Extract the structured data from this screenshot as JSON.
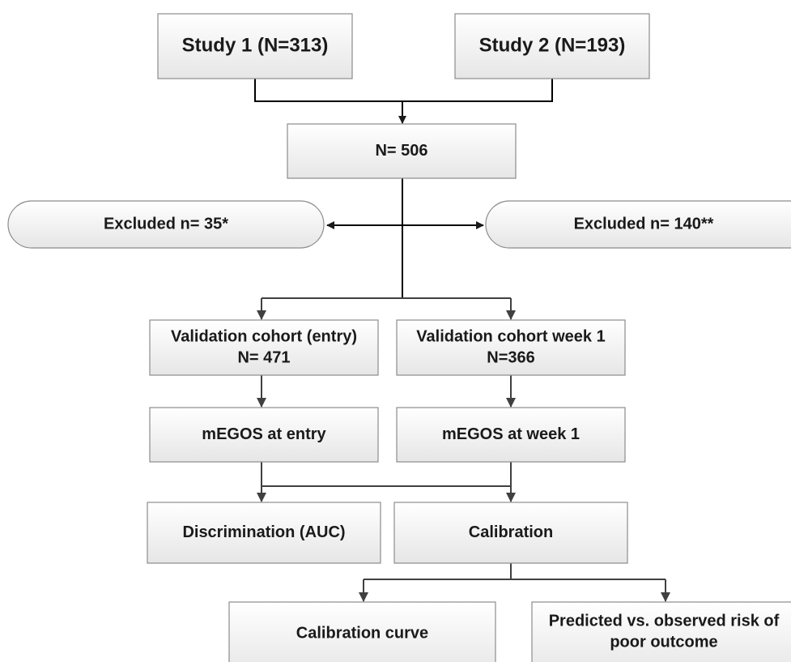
{
  "nodes": [
    {
      "lines": [
        "Study 1 (N=313)"
      ]
    },
    {
      "lines": [
        "Study 2 (N=193)"
      ]
    },
    {
      "lines": [
        "N= 506"
      ]
    },
    {
      "lines": [
        "Excluded n= 35*"
      ]
    },
    {
      "lines": [
        "Excluded n= 140**"
      ]
    },
    {
      "lines": [
        "Validation cohort (entry)",
        "N= 471"
      ]
    },
    {
      "lines": [
        "Validation cohort week 1",
        "N=366"
      ]
    },
    {
      "lines": [
        "mEGOS at entry"
      ]
    },
    {
      "lines": [
        "mEGOS at week 1"
      ]
    },
    {
      "lines": [
        "Discrimination (AUC)"
      ]
    },
    {
      "lines": [
        "Calibration"
      ]
    },
    {
      "lines": [
        "Calibration curve"
      ]
    },
    {
      "lines": [
        "Predicted vs. observed risk of",
        "poor outcome"
      ]
    }
  ]
}
